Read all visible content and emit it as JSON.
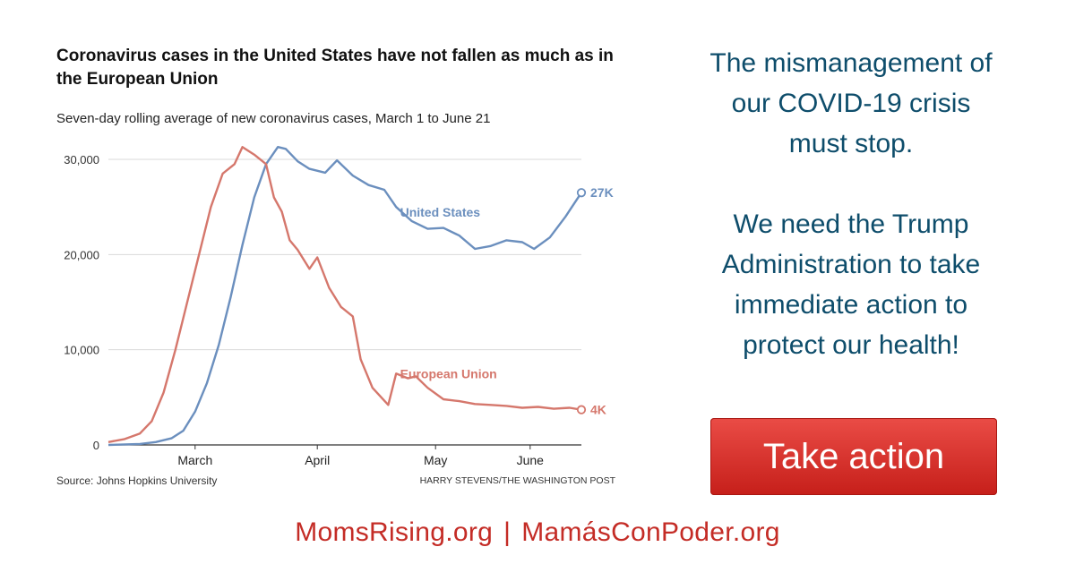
{
  "chart_data": {
    "type": "line",
    "title": "Coronavirus cases in the United States have not fallen as much as in the European Union",
    "subtitle": "Seven-day rolling average of new coronavirus cases, March 1 to June 21",
    "source": "Source: Johns Hopkins University",
    "credit": "HARRY STEVENS/THE WASHINGTON POST",
    "xlabel": "",
    "ylabel": "",
    "x_ticks": [
      "March",
      "April",
      "May",
      "June"
    ],
    "y_ticks": [
      "30,000",
      "20,000",
      "10,000",
      "0"
    ],
    "ylim": [
      0,
      32000
    ],
    "x_range": [
      "Feb 22",
      "Jun 21"
    ],
    "grid": true,
    "legend": "inline labels",
    "series": [
      {
        "name": "United States",
        "color": "#6b8fbe",
        "end_label": "27K",
        "points": [
          [
            "Feb 22",
            0
          ],
          [
            "Mar 1",
            100
          ],
          [
            "Mar 5",
            300
          ],
          [
            "Mar 9",
            700
          ],
          [
            "Mar 12",
            1500
          ],
          [
            "Mar 15",
            3500
          ],
          [
            "Mar 18",
            6500
          ],
          [
            "Mar 21",
            10500
          ],
          [
            "Mar 24",
            15500
          ],
          [
            "Mar 27",
            21000
          ],
          [
            "Mar 30",
            26000
          ],
          [
            "Apr 2",
            29500
          ],
          [
            "Apr 5",
            31300
          ],
          [
            "Apr 7",
            31100
          ],
          [
            "Apr 10",
            29800
          ],
          [
            "Apr 13",
            29000
          ],
          [
            "Apr 17",
            28600
          ],
          [
            "Apr 20",
            29900
          ],
          [
            "Apr 24",
            28300
          ],
          [
            "Apr 28",
            27300
          ],
          [
            "May 2",
            26800
          ],
          [
            "May 5",
            25000
          ],
          [
            "May 9",
            23500
          ],
          [
            "May 13",
            22700
          ],
          [
            "May 17",
            22800
          ],
          [
            "May 21",
            22000
          ],
          [
            "May 25",
            20600
          ],
          [
            "May 29",
            20900
          ],
          [
            "Jun 2",
            21500
          ],
          [
            "Jun 6",
            21300
          ],
          [
            "Jun 9",
            20600
          ],
          [
            "Jun 13",
            21800
          ],
          [
            "Jun 17",
            24000
          ],
          [
            "Jun 21",
            26500
          ]
        ]
      },
      {
        "name": "European Union",
        "color": "#d5776c",
        "end_label": "4K",
        "points": [
          [
            "Feb 22",
            300
          ],
          [
            "Feb 26",
            600
          ],
          [
            "Mar 1",
            1200
          ],
          [
            "Mar 4",
            2500
          ],
          [
            "Mar 7",
            5500
          ],
          [
            "Mar 10",
            10000
          ],
          [
            "Mar 13",
            15000
          ],
          [
            "Mar 16",
            20000
          ],
          [
            "Mar 19",
            25000
          ],
          [
            "Mar 22",
            28500
          ],
          [
            "Mar 25",
            29500
          ],
          [
            "Mar 27",
            31300
          ],
          [
            "Mar 30",
            30500
          ],
          [
            "Apr 2",
            29500
          ],
          [
            "Apr 4",
            26000
          ],
          [
            "Apr 6",
            24500
          ],
          [
            "Apr 8",
            21500
          ],
          [
            "Apr 10",
            20500
          ],
          [
            "Apr 13",
            18500
          ],
          [
            "Apr 15",
            19700
          ],
          [
            "Apr 18",
            16500
          ],
          [
            "Apr 21",
            14500
          ],
          [
            "Apr 24",
            13500
          ],
          [
            "Apr 26",
            9000
          ],
          [
            "Apr 29",
            6000
          ],
          [
            "May 3",
            4200
          ],
          [
            "May 5",
            7500
          ],
          [
            "May 8",
            7000
          ],
          [
            "May 10",
            7200
          ],
          [
            "May 13",
            6000
          ],
          [
            "May 17",
            4800
          ],
          [
            "May 21",
            4600
          ],
          [
            "May 25",
            4300
          ],
          [
            "May 29",
            4200
          ],
          [
            "Jun 2",
            4100
          ],
          [
            "Jun 6",
            3900
          ],
          [
            "Jun 10",
            4000
          ],
          [
            "Jun 14",
            3800
          ],
          [
            "Jun 18",
            3900
          ],
          [
            "Jun 21",
            3700
          ]
        ]
      }
    ]
  },
  "message": {
    "lines_1": [
      "The mismanagement of",
      "our COVID-19 crisis",
      "must stop."
    ],
    "lines_2": [
      "We need the Trump",
      "Administration to take",
      "immediate action to",
      "protect our health!"
    ]
  },
  "cta": {
    "label": "Take action"
  },
  "footer": {
    "link_1": "MomsRising.org",
    "separator": "|",
    "link_2": "MamásConPoder.org"
  }
}
